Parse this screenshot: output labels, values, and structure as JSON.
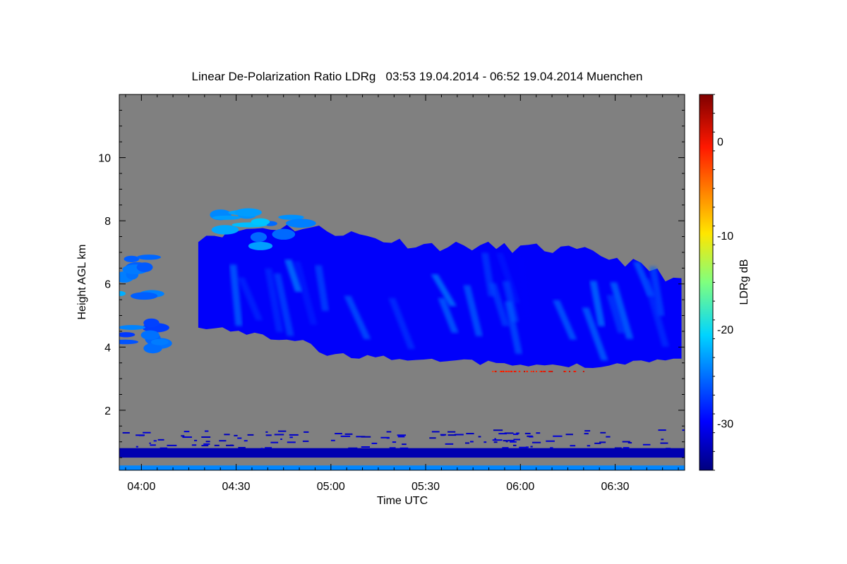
{
  "chart_data": {
    "type": "heatmap",
    "title": "Linear De-Polarization Ratio LDRg   03:53 19.04.2014 - 06:52 19.04.2014 Muenchen",
    "xlabel": "Time UTC",
    "ylabel": "Height AGL km",
    "colorbar_label": "LDRg dB",
    "x_range_utc": [
      "03:53",
      "06:52"
    ],
    "x_range_min": [
      233,
      412
    ],
    "x_ticks": [
      {
        "label": "04:00",
        "minute": 240
      },
      {
        "label": "04:30",
        "minute": 270
      },
      {
        "label": "05:00",
        "minute": 300
      },
      {
        "label": "05:30",
        "minute": 330
      },
      {
        "label": "06:00",
        "minute": 360
      },
      {
        "label": "06:30",
        "minute": 390
      }
    ],
    "ylim": [
      0.1,
      12.0
    ],
    "y_ticks": [
      {
        "label": "2",
        "value": 2
      },
      {
        "label": "4",
        "value": 4
      },
      {
        "label": "6",
        "value": 6
      },
      {
        "label": "8",
        "value": 8
      },
      {
        "label": "10",
        "value": 10
      }
    ],
    "colorbar_range": [
      -35,
      5
    ],
    "colorbar_ticks": [
      {
        "label": "0",
        "value": 0
      },
      {
        "label": "-10",
        "value": -10
      },
      {
        "label": "-20",
        "value": -20
      },
      {
        "label": "-30",
        "value": -30
      }
    ],
    "background_color": "#808080",
    "features": [
      {
        "name": "cirrus-main",
        "time_min": [
          258,
          411
        ],
        "base_km": 3.4,
        "top_km": 7.5,
        "ldr_db": [
          -30,
          -22
        ]
      },
      {
        "name": "upper-cloud-fragments",
        "time_min": [
          264,
          291
        ],
        "base_km": 7.2,
        "top_km": 8.3,
        "ldr_db": [
          -26,
          -20
        ]
      },
      {
        "name": "left-cloud-patch",
        "time_min": [
          233,
          245
        ],
        "base_km": 5.6,
        "top_km": 6.9,
        "ldr_db": [
          -26,
          -22
        ]
      },
      {
        "name": "left-low-patch",
        "time_min": [
          234,
          246
        ],
        "base_km": 3.9,
        "top_km": 4.8,
        "ldr_db": [
          -28,
          -24
        ]
      },
      {
        "name": "boundary-layer",
        "time_min": [
          233,
          412
        ],
        "base_km": 0.5,
        "top_km": 1.4,
        "ldr_db": [
          -33,
          -31
        ]
      },
      {
        "name": "near-ground",
        "time_min": [
          233,
          412
        ],
        "base_km": 0.1,
        "top_km": 0.25,
        "ldr_db": [
          -24,
          -20
        ]
      },
      {
        "name": "scattered-depolarizing-points",
        "time_min": [
          350,
          380
        ],
        "base_km": 3.1,
        "top_km": 3.25,
        "ldr_db": [
          -2,
          2
        ]
      }
    ]
  }
}
